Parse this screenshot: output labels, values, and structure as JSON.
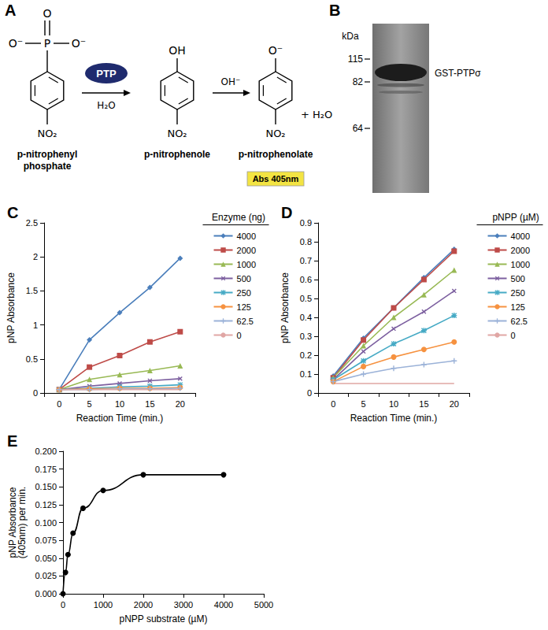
{
  "diagram": {
    "label": "A",
    "enzyme": "PTP",
    "water": "H₂O",
    "base": "OH⁻",
    "byproduct": "+ H₂O",
    "readout": "Abs 405nm",
    "atoms": {
      "oxygen": "O",
      "phosphorus": "P",
      "oxide": "O⁻",
      "nitro": "NO₂",
      "hydroxyl": "OH"
    },
    "compounds": [
      "p-nitrophenyl\nphosphate",
      "p-nitrophenole",
      "p-nitrophenolate"
    ]
  },
  "gel": {
    "label": "B",
    "unit": "kDa",
    "markers": [
      115,
      82,
      64
    ],
    "band_label": "GST-PTPσ"
  },
  "chart_data": [
    {
      "title": "C",
      "type": "line",
      "categories": [
        "0",
        "5",
        "10",
        "15",
        "20"
      ],
      "x_label": "Reaction Time (min.)",
      "y_label": "pNP Absorbance",
      "ylim": [
        0,
        2.5
      ],
      "yticks": [
        0,
        0.5,
        1,
        1.5,
        2,
        2.5
      ],
      "grid": false,
      "legend": "right",
      "legend_title": "Enzyme (ng)",
      "series": [
        {
          "name": "4000",
          "color": "#4a7ebb",
          "marker": "diamond",
          "values": [
            0.05,
            0.78,
            1.18,
            1.55,
            1.98
          ]
        },
        {
          "name": "2000",
          "color": "#be4b48",
          "marker": "square",
          "values": [
            0.05,
            0.38,
            0.55,
            0.75,
            0.9
          ]
        },
        {
          "name": "1000",
          "color": "#98b954",
          "marker": "triangle",
          "values": [
            0.05,
            0.2,
            0.27,
            0.33,
            0.4
          ]
        },
        {
          "name": "500",
          "color": "#7d60a0",
          "marker": "x",
          "values": [
            0.05,
            0.1,
            0.14,
            0.18,
            0.21
          ]
        },
        {
          "name": "250",
          "color": "#46aac5",
          "marker": "asterisk",
          "values": [
            0.05,
            0.07,
            0.09,
            0.1,
            0.12
          ]
        },
        {
          "name": "125",
          "color": "#f69240",
          "marker": "circle",
          "values": [
            0.05,
            0.06,
            0.07,
            0.07,
            0.08
          ]
        },
        {
          "name": "62.5",
          "color": "#9bb2d8",
          "marker": "plus",
          "values": [
            0.05,
            0.05,
            0.06,
            0.06,
            0.07
          ]
        },
        {
          "name": "0",
          "color": "#e0a6a4",
          "marker": "none",
          "values": [
            0.05,
            0.05,
            0.05,
            0.05,
            0.05
          ]
        }
      ]
    },
    {
      "title": "D",
      "type": "line",
      "categories": [
        "0",
        "5",
        "10",
        "15",
        "20"
      ],
      "x_label": "Reaction Time (min.)",
      "y_label": "pNP Absorbance",
      "ylim": [
        0,
        0.9
      ],
      "yticks": [
        0,
        0.1,
        0.2,
        0.3,
        0.4,
        0.5,
        0.6,
        0.7,
        0.8,
        0.9
      ],
      "grid": false,
      "legend": "right",
      "legend_title": "pNPP (µM)",
      "series": [
        {
          "name": "4000",
          "color": "#4a7ebb",
          "marker": "diamond",
          "values": [
            0.09,
            0.29,
            0.45,
            0.61,
            0.76
          ]
        },
        {
          "name": "2000",
          "color": "#be4b48",
          "marker": "square",
          "values": [
            0.08,
            0.28,
            0.45,
            0.6,
            0.75
          ]
        },
        {
          "name": "1000",
          "color": "#98b954",
          "marker": "triangle",
          "values": [
            0.08,
            0.25,
            0.4,
            0.52,
            0.65
          ]
        },
        {
          "name": "500",
          "color": "#7d60a0",
          "marker": "x",
          "values": [
            0.07,
            0.22,
            0.34,
            0.43,
            0.54
          ]
        },
        {
          "name": "250",
          "color": "#46aac5",
          "marker": "asterisk",
          "values": [
            0.07,
            0.17,
            0.26,
            0.33,
            0.41
          ]
        },
        {
          "name": "125",
          "color": "#f69240",
          "marker": "circle",
          "values": [
            0.06,
            0.14,
            0.19,
            0.23,
            0.27
          ]
        },
        {
          "name": "62.5",
          "color": "#9bb2d8",
          "marker": "plus",
          "values": [
            0.06,
            0.1,
            0.13,
            0.15,
            0.17
          ]
        },
        {
          "name": "0",
          "color": "#e0a6a4",
          "marker": "none",
          "values": [
            0.05,
            0.05,
            0.05,
            0.05,
            0.05
          ]
        }
      ]
    },
    {
      "title": "E",
      "type": "line",
      "x": [
        0,
        62.5,
        125,
        250,
        500,
        1000,
        2000,
        4000
      ],
      "values": [
        0,
        0.03,
        0.055,
        0.085,
        0.12,
        0.145,
        0.167,
        0.167
      ],
      "color": "#000000",
      "marker": "circle",
      "line_style": "smooth",
      "x_label": "pNPP substrate (µM)",
      "y_label": "pNP Absorbance\n(405nm) per min.",
      "xlim": [
        0,
        5000
      ],
      "xticks": [
        0,
        1000,
        2000,
        3000,
        4000,
        5000
      ],
      "ylim": [
        0,
        0.2
      ],
      "yticks": [
        {
          "value": 0,
          "label": "0.000"
        },
        {
          "value": 0.025,
          "label": "0.025"
        },
        {
          "value": 0.05,
          "label": "0.050"
        },
        {
          "value": 0.075,
          "label": "0.075"
        },
        {
          "value": 0.1,
          "label": "0.100"
        },
        {
          "value": 0.125,
          "label": "0.125"
        },
        {
          "value": 0.15,
          "label": "0.150"
        },
        {
          "value": 0.175,
          "label": "0.175"
        },
        {
          "value": 0.2,
          "label": "0.200"
        }
      ],
      "grid": false
    }
  ]
}
